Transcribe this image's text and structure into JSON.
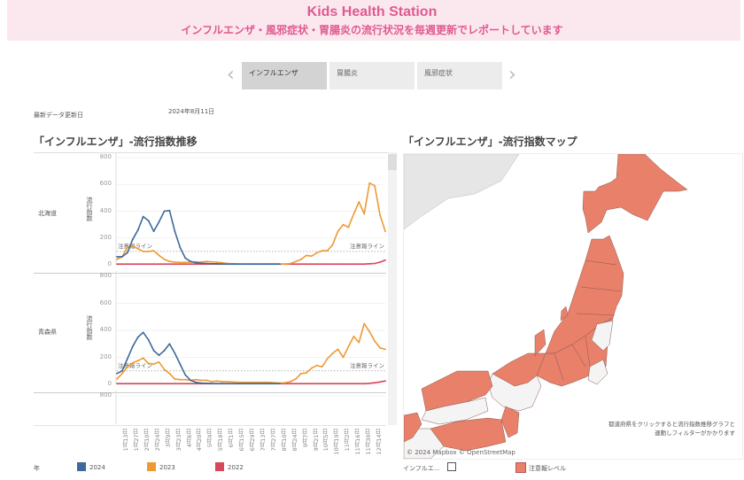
{
  "header": {
    "title": "Kids Health Station",
    "subtitle": "インフルエンザ・風邪症状・胃腸炎の流行状況を毎週更新でレポートしています"
  },
  "tabs": {
    "prev_icon": "chevron-left-icon",
    "next_icon": "chevron-right-icon",
    "items": [
      {
        "label": "インフルエンザ",
        "selected": true
      },
      {
        "label": "胃腸炎",
        "selected": false
      },
      {
        "label": "風邪症状",
        "selected": false
      }
    ]
  },
  "update": {
    "label": "最新データ更新日",
    "date": "2024年8月11日"
  },
  "chart_section": {
    "title": "「インフルエンザ」-流行指数推移"
  },
  "map_section": {
    "title": "「インフルエンザ」-流行指数マップ",
    "note_line1": "都道府県をクリックすると流行指数推移グラフと",
    "note_line2": "連動しフィルターがかかります",
    "attribution": "© 2024 Mapbox  © OpenStreetMap",
    "fill_color": "#e8806a"
  },
  "legend": {
    "title": "年",
    "items": [
      {
        "label": "2024",
        "color": "#3e6a9b"
      },
      {
        "label": "2023",
        "color": "#ee9a32"
      },
      {
        "label": "2022",
        "color": "#d9475a"
      }
    ]
  },
  "map_legend": {
    "filter_label": "インフルエ...",
    "level_label": "注意報レベル",
    "level_color": "#e8806a"
  },
  "chart_data": {
    "type": "line",
    "ylabel": "流行指数",
    "ylim": [
      0,
      800
    ],
    "yticks": [
      "0",
      "200",
      "400",
      "600",
      "800"
    ],
    "threshold": {
      "value": 100,
      "label": "注意報ライン"
    },
    "xticks": [
      "1月13日",
      "1月27日",
      "2月10日",
      "2月24日",
      "3月9日",
      "3月23日",
      "4月6日",
      "4月20日",
      "5月4日",
      "5月18日",
      "6月1日",
      "6月15日",
      "6月29日",
      "7月13日",
      "7月27日",
      "8月10日",
      "8月24日",
      "9月7日",
      "9月21日",
      "10月5日",
      "10月19日",
      "11月2日",
      "11月16日",
      "11月30日",
      "12月14日"
    ],
    "facets": [
      {
        "label": "北海道",
        "series": [
          {
            "name": "2024",
            "values": [
              60,
              60,
              90,
              190,
              260,
              360,
              330,
              250,
              320,
              400,
              405,
              250,
              130,
              50,
              25,
              15,
              12,
              10,
              8,
              8,
              6,
              5,
              5,
              5,
              5,
              5,
              5,
              5,
              5,
              5,
              5,
              5
            ]
          },
          {
            "name": "2023",
            "values": [
              40,
              60,
              130,
              140,
              120,
              100,
              100,
              105,
              70,
              40,
              25,
              20,
              18,
              18,
              20,
              22,
              20,
              25,
              22,
              20,
              15,
              10,
              8,
              6,
              5,
              5,
              5,
              5,
              5,
              5,
              5,
              5,
              5,
              10,
              25,
              40,
              70,
              65,
              90,
              105,
              105,
              150,
              250,
              300,
              280,
              380,
              470,
              380,
              610,
              590,
              370,
              250
            ]
          },
          {
            "name": "2022",
            "values": [
              5,
              5,
              5,
              5,
              5,
              5,
              5,
              5,
              5,
              5,
              5,
              5,
              5,
              5,
              5,
              5,
              5,
              5,
              5,
              5,
              5,
              5,
              5,
              5,
              5,
              5,
              5,
              5,
              5,
              5,
              5,
              5,
              5,
              5,
              5,
              5,
              5,
              5,
              5,
              5,
              5,
              5,
              5,
              5,
              5,
              5,
              5,
              5,
              8,
              10,
              20,
              35
            ]
          }
        ]
      },
      {
        "label": "青森県",
        "series": [
          {
            "name": "2024",
            "values": [
              80,
              100,
              190,
              280,
              350,
              385,
              330,
              250,
              215,
              250,
              300,
              230,
              150,
              70,
              30,
              15,
              10,
              8,
              6,
              5,
              5,
              5,
              5,
              5,
              5,
              5,
              5,
              5,
              5,
              5,
              5,
              5
            ]
          },
          {
            "name": "2023",
            "values": [
              40,
              80,
              130,
              160,
              175,
              195,
              155,
              150,
              165,
              110,
              80,
              40,
              35,
              35,
              30,
              35,
              30,
              30,
              20,
              25,
              20,
              20,
              18,
              15,
              15,
              15,
              15,
              15,
              15,
              15,
              12,
              10,
              12,
              20,
              40,
              80,
              85,
              120,
              140,
              130,
              190,
              230,
              260,
              200,
              280,
              355,
              310,
              450,
              390,
              320,
              270,
              260
            ]
          },
          {
            "name": "2022",
            "values": [
              5,
              5,
              5,
              5,
              5,
              5,
              5,
              5,
              5,
              5,
              5,
              5,
              5,
              5,
              5,
              5,
              5,
              5,
              5,
              5,
              5,
              5,
              5,
              5,
              5,
              5,
              5,
              5,
              5,
              5,
              5,
              5,
              5,
              5,
              5,
              5,
              5,
              5,
              5,
              5,
              5,
              5,
              5,
              5,
              5,
              5,
              5,
              5,
              8,
              12,
              18,
              25
            ]
          }
        ]
      },
      {
        "label": "",
        "series": []
      }
    ]
  }
}
